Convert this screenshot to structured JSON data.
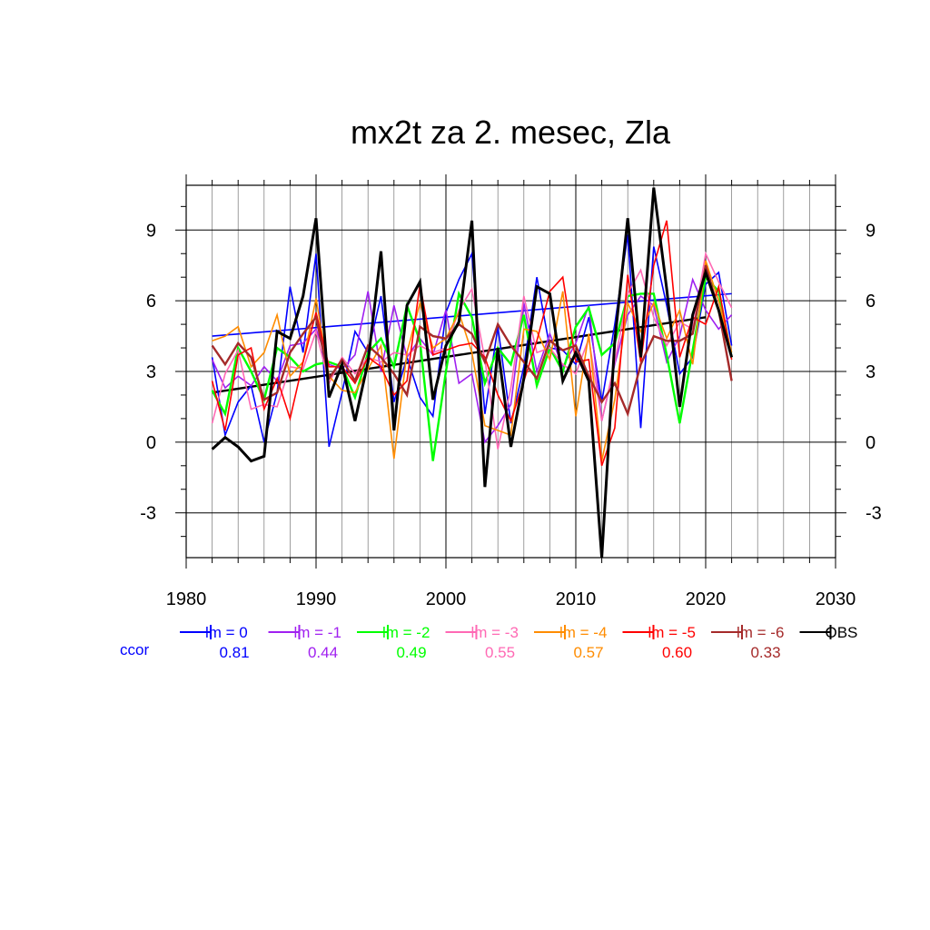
{
  "chart_data": {
    "type": "line",
    "title": "mx2t za 2. mesec, Zla",
    "xlabel": "",
    "ylabel": "",
    "xlim": [
      1980,
      2030
    ],
    "ylim": [
      -4.9,
      10.9
    ],
    "x_ticks": [
      1980,
      1990,
      2000,
      2010,
      2020,
      2030
    ],
    "y_ticks": [
      -3,
      0,
      3,
      6,
      9
    ],
    "grid": true,
    "legend_position": "bottom",
    "ccor_label": "ccor",
    "x": [
      1982,
      1983,
      1984,
      1985,
      1986,
      1987,
      1988,
      1989,
      1990,
      1991,
      1992,
      1993,
      1994,
      1995,
      1996,
      1997,
      1998,
      1999,
      2000,
      2001,
      2002,
      2003,
      2004,
      2005,
      2006,
      2007,
      2008,
      2009,
      2010,
      2011,
      2012,
      2013,
      2014,
      2015,
      2016,
      2017,
      2018,
      2019,
      2020,
      2021,
      2022
    ],
    "series": [
      {
        "name": "lm = 0",
        "ccor": "0.81",
        "color": "#0000ff",
        "values": [
          3.6,
          0.3,
          1.7,
          2.4,
          0.0,
          2.1,
          6.6,
          3.8,
          8.0,
          -0.2,
          2.1,
          4.7,
          3.8,
          6.2,
          1.7,
          3.6,
          1.9,
          1.1,
          5.5,
          6.9,
          8.0,
          1.2,
          4.9,
          0.8,
          3.2,
          7.0,
          4.0,
          3.9,
          3.3,
          5.3,
          1.7,
          5.0,
          8.8,
          0.6,
          8.3,
          5.8,
          2.9,
          3.6,
          6.7,
          7.2,
          4.1
        ]
      },
      {
        "name": "lm = -1",
        "ccor": "0.44",
        "color": "#a020f0",
        "values": [
          3.5,
          2.3,
          2.8,
          2.4,
          3.2,
          2.6,
          4.1,
          4.2,
          4.8,
          3.3,
          3.1,
          3.7,
          6.4,
          3.0,
          5.8,
          3.6,
          4.4,
          3.7,
          5.6,
          2.5,
          2.9,
          0.0,
          0.7,
          1.6,
          5.9,
          3.0,
          4.6,
          3.2,
          4.2,
          5.8,
          0.9,
          3.3,
          5.4,
          6.2,
          5.8,
          3.4,
          4.5,
          6.9,
          5.6,
          4.8,
          5.4
        ]
      },
      {
        "name": "lm = -2",
        "ccor": "0.49",
        "color": "#00ff00",
        "values": [
          2.2,
          1.2,
          4.0,
          3.0,
          1.8,
          4.0,
          3.6,
          3.0,
          3.3,
          3.4,
          3.2,
          1.9,
          3.8,
          4.4,
          3.2,
          5.8,
          4.3,
          -0.8,
          3.0,
          6.3,
          5.3,
          2.5,
          4.0,
          3.3,
          5.4,
          2.4,
          4.0,
          3.0,
          4.9,
          5.7,
          3.7,
          4.2,
          6.2,
          6.3,
          6.3,
          3.7,
          0.8,
          3.9,
          7.0,
          6.4,
          3.6
        ]
      },
      {
        "name": "lm = -3",
        "ccor": "0.55",
        "color": "#ff69b4",
        "values": [
          0.8,
          2.9,
          3.9,
          1.4,
          1.6,
          1.5,
          3.2,
          3.1,
          4.7,
          2.5,
          3.6,
          2.9,
          3.6,
          3.4,
          3.8,
          3.7,
          4.1,
          3.8,
          4.0,
          5.6,
          6.5,
          3.5,
          -0.3,
          2.3,
          6.2,
          3.8,
          4.0,
          3.3,
          2.9,
          4.4,
          0.9,
          3.4,
          6.3,
          7.3,
          5.3,
          4.1,
          5.1,
          4.8,
          8.0,
          6.8,
          5.7
        ]
      },
      {
        "name": "lm = -4",
        "ccor": "0.57",
        "color": "#ff8c00",
        "values": [
          4.3,
          4.5,
          4.9,
          3.2,
          3.8,
          5.4,
          2.8,
          3.4,
          6.1,
          2.8,
          2.2,
          2.1,
          3.1,
          4.1,
          -0.7,
          3.8,
          5.9,
          4.0,
          4.4,
          5.5,
          3.8,
          0.7,
          0.5,
          0.3,
          4.8,
          4.7,
          3.5,
          6.4,
          1.1,
          4.6,
          -0.8,
          1.8,
          5.9,
          4.7,
          5.9,
          4.4,
          5.6,
          3.3,
          7.7,
          6.0,
          3.8
        ]
      },
      {
        "name": "lm = -5",
        "ccor": "0.60",
        "color": "#ff0000",
        "values": [
          2.6,
          0.5,
          3.7,
          4.0,
          1.4,
          2.7,
          1.0,
          3.4,
          5.5,
          3.2,
          3.2,
          2.5,
          3.6,
          3.2,
          2.0,
          2.6,
          6.7,
          3.7,
          3.9,
          4.1,
          4.2,
          3.6,
          2.0,
          0.9,
          2.6,
          4.3,
          6.4,
          7.0,
          3.4,
          3.5,
          -1.0,
          0.6,
          7.1,
          3.4,
          7.5,
          9.4,
          3.6,
          5.3,
          5.0,
          6.6,
          3.5
        ]
      },
      {
        "name": "lm = -6",
        "ccor": "0.33",
        "color": "#a52a2a",
        "values": [
          4.1,
          3.3,
          4.2,
          3.6,
          1.8,
          2.1,
          3.8,
          4.6,
          5.3,
          2.7,
          3.5,
          2.6,
          4.1,
          3.6,
          2.9,
          2.0,
          4.9,
          4.5,
          4.4,
          5.0,
          4.6,
          3.4,
          5.0,
          4.1,
          3.4,
          2.7,
          4.3,
          3.9,
          4.1,
          2.8,
          1.7,
          2.5,
          1.2,
          3.3,
          4.5,
          4.3,
          4.3,
          4.6,
          7.5,
          5.6,
          2.6
        ]
      },
      {
        "name": "OBS",
        "ccor": "",
        "color": "#000000",
        "values": [
          -0.3,
          0.2,
          -0.2,
          -0.8,
          -0.6,
          4.7,
          4.4,
          6.2,
          9.5,
          1.9,
          3.3,
          0.9,
          3.4,
          8.1,
          0.5,
          5.8,
          6.8,
          1.8,
          4.1,
          5.1,
          9.4,
          -1.9,
          4.0,
          -0.2,
          2.7,
          6.6,
          6.3,
          2.6,
          3.8,
          2.6,
          -4.9,
          4.3,
          9.5,
          3.6,
          10.8,
          6.5,
          1.5,
          5.4,
          7.2,
          5.6,
          3.6
        ]
      }
    ],
    "trend_lines": [
      {
        "name": "lm = 0 trend",
        "color": "#0000ff",
        "x": [
          1982,
          2022
        ],
        "y": [
          4.5,
          6.3
        ]
      },
      {
        "name": "OBS trend",
        "color": "#000000",
        "x": [
          1982,
          2020
        ],
        "y": [
          2.1,
          5.3
        ]
      }
    ]
  }
}
